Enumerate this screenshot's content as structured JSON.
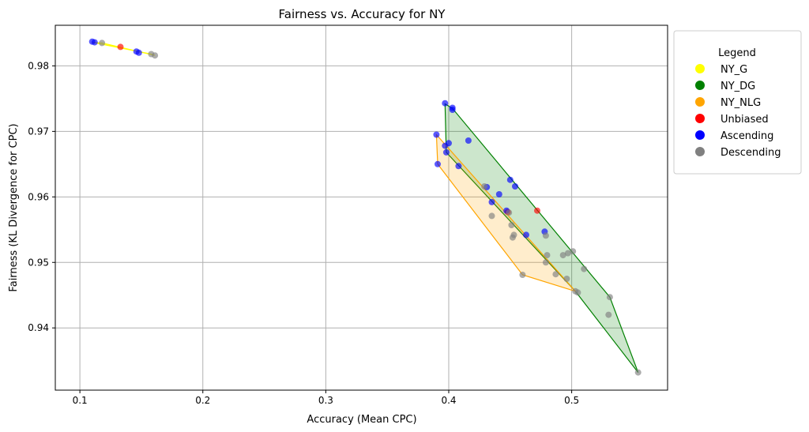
{
  "chart_data": {
    "type": "scatter",
    "title": "Fairness vs. Accuracy for NY",
    "xlabel": "Accuracy (Mean CPC)",
    "ylabel": "Fairness (KL Divergence for CPC)",
    "xlim": [
      0.08,
      0.578
    ],
    "ylim": [
      0.9305,
      0.9862
    ],
    "x_ticks": [
      0.1,
      0.2,
      0.3,
      0.4,
      0.5
    ],
    "x_tick_labels": [
      "0.1",
      "0.2",
      "0.3",
      "0.4",
      "0.5"
    ],
    "y_ticks": [
      0.94,
      0.95,
      0.96,
      0.97,
      0.98
    ],
    "y_tick_labels": [
      "0.94",
      "0.95",
      "0.96",
      "0.97",
      "0.98"
    ],
    "grid": true,
    "legend_placement": "outside-right",
    "legend": {
      "title": "Legend",
      "entries": [
        {
          "label": "NY_G",
          "color": "#ffff00"
        },
        {
          "label": "NY_DG",
          "color": "#008000"
        },
        {
          "label": "NY_NLG",
          "color": "#ffa500"
        },
        {
          "label": "Unbiased",
          "color": "#ff0000"
        },
        {
          "label": "Ascending",
          "color": "#0000ff"
        },
        {
          "label": "Descending",
          "color": "#808080"
        }
      ]
    },
    "regions": [
      {
        "name": "NY_G",
        "color": "#ffff00",
        "edge_color": "#ffff00",
        "fill_opacity": 0.2,
        "hull": [
          [
            0.11,
            0.9836
          ],
          [
            0.118,
            0.9835
          ],
          [
            0.161,
            0.9816
          ],
          [
            0.158,
            0.9818
          ]
        ]
      },
      {
        "name": "NY_DG",
        "color": "#008000",
        "edge_color": "#008000",
        "fill_opacity": 0.2,
        "hull": [
          [
            0.397,
            0.9742
          ],
          [
            0.403,
            0.9735
          ],
          [
            0.531,
            0.9447
          ],
          [
            0.554,
            0.9332
          ],
          [
            0.503,
            0.9456
          ],
          [
            0.398,
            0.9668
          ]
        ]
      },
      {
        "name": "NY_NLG",
        "color": "#ffa500",
        "edge_color": "#ffa500",
        "fill_opacity": 0.2,
        "hull": [
          [
            0.39,
            0.9695
          ],
          [
            0.503,
            0.9456
          ],
          [
            0.46,
            0.9481
          ],
          [
            0.391,
            0.965
          ]
        ]
      }
    ],
    "series": [
      {
        "name": "Unbiased",
        "color": "#ff0000",
        "points": [
          [
            0.133,
            0.9829
          ],
          [
            0.472,
            0.9579
          ],
          [
            0.448,
            0.9577
          ]
        ]
      },
      {
        "name": "Ascending",
        "color": "#0000ff",
        "points": [
          [
            0.11,
            0.9837
          ],
          [
            0.112,
            0.9836
          ],
          [
            0.146,
            0.9822
          ],
          [
            0.148,
            0.982
          ],
          [
            0.397,
            0.9743
          ],
          [
            0.403,
            0.9736
          ],
          [
            0.403,
            0.9733
          ],
          [
            0.4,
            0.9682
          ],
          [
            0.416,
            0.9686
          ],
          [
            0.39,
            0.9695
          ],
          [
            0.397,
            0.9678
          ],
          [
            0.398,
            0.9668
          ],
          [
            0.391,
            0.965
          ],
          [
            0.408,
            0.9647
          ],
          [
            0.45,
            0.9626
          ],
          [
            0.454,
            0.9616
          ],
          [
            0.431,
            0.9615
          ],
          [
            0.441,
            0.9604
          ],
          [
            0.435,
            0.9592
          ],
          [
            0.447,
            0.9579
          ],
          [
            0.463,
            0.9542
          ],
          [
            0.478,
            0.9547
          ]
        ]
      },
      {
        "name": "Descending",
        "color": "#808080",
        "points": [
          [
            0.118,
            0.9835
          ],
          [
            0.158,
            0.9818
          ],
          [
            0.161,
            0.9816
          ],
          [
            0.429,
            0.9616
          ],
          [
            0.449,
            0.9576
          ],
          [
            0.435,
            0.9571
          ],
          [
            0.451,
            0.9557
          ],
          [
            0.453,
            0.9542
          ],
          [
            0.452,
            0.9538
          ],
          [
            0.479,
            0.9541
          ],
          [
            0.48,
            0.9511
          ],
          [
            0.479,
            0.95
          ],
          [
            0.493,
            0.9511
          ],
          [
            0.497,
            0.9514
          ],
          [
            0.501,
            0.9517
          ],
          [
            0.51,
            0.949
          ],
          [
            0.46,
            0.9481
          ],
          [
            0.487,
            0.9482
          ],
          [
            0.496,
            0.9475
          ],
          [
            0.503,
            0.9456
          ],
          [
            0.505,
            0.9454
          ],
          [
            0.531,
            0.9447
          ],
          [
            0.53,
            0.942
          ],
          [
            0.554,
            0.9332
          ]
        ]
      }
    ]
  }
}
